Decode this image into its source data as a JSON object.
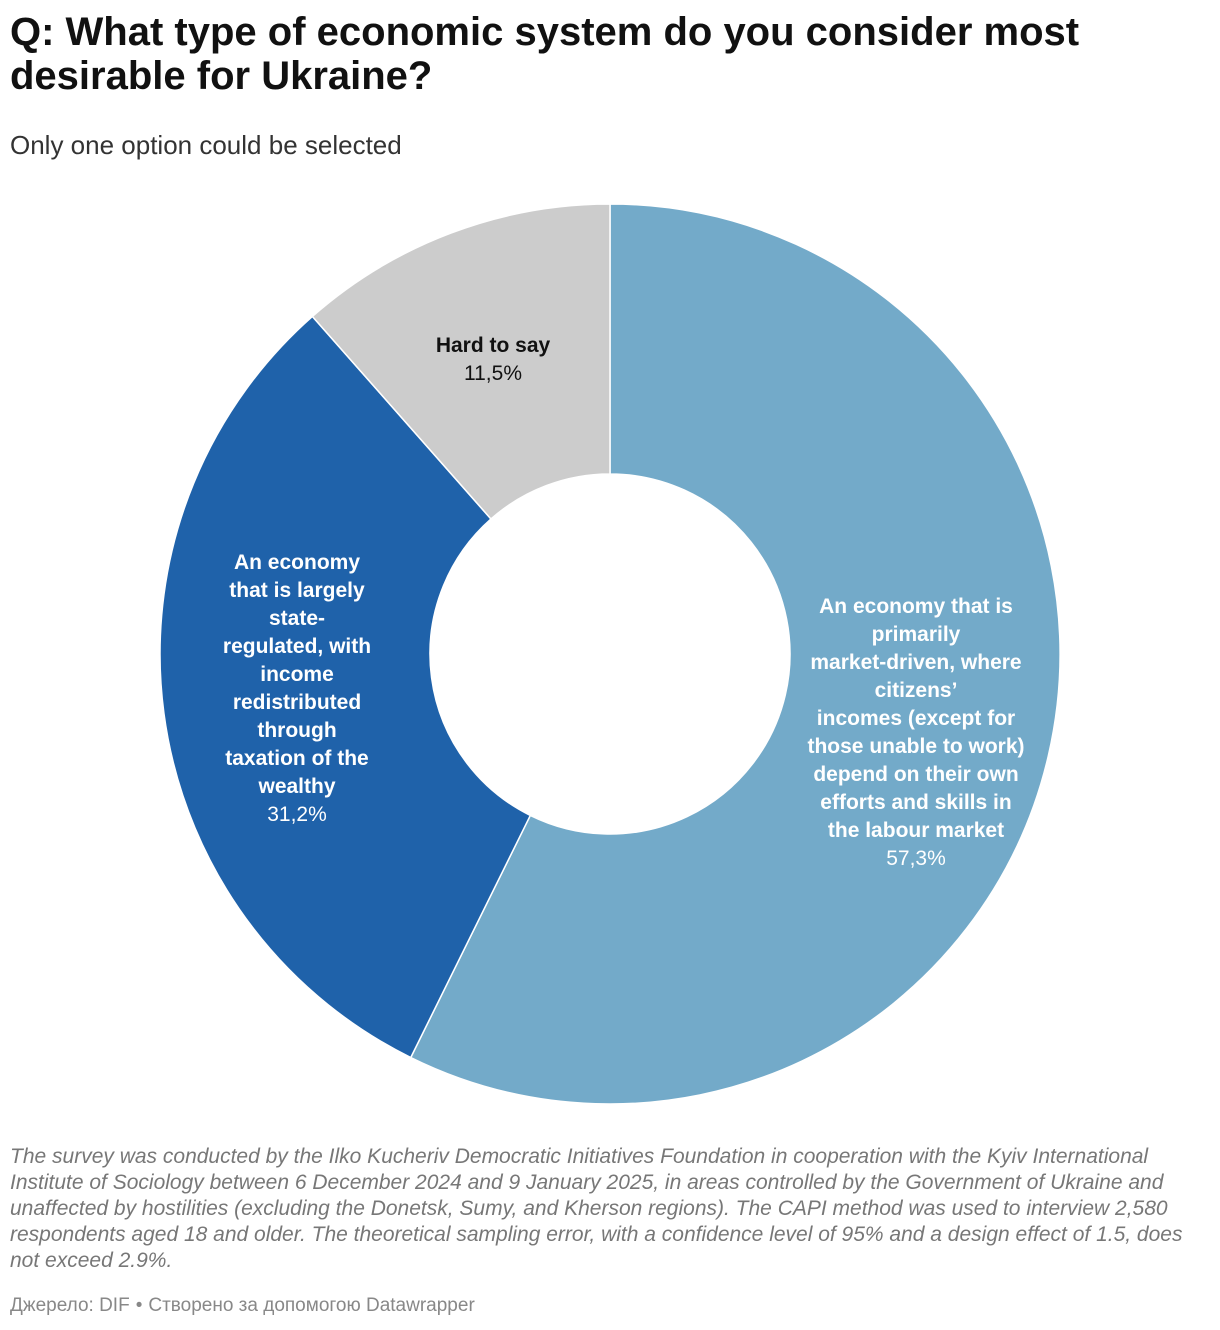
{
  "header": {
    "title": "Q: What type of economic system do you consider most desirable for Ukraine?",
    "subtitle": "Only one option could be selected"
  },
  "chart_data": {
    "type": "pie",
    "variant": "donut",
    "title": "Q: What type of economic system do you consider most desirable for Ukraine?",
    "subtitle": "Only one option could be selected",
    "slices": [
      {
        "name": "market",
        "label_lines": [
          "An economy that is",
          "primarily",
          "market-driven, where",
          "citizens’",
          "incomes (except for",
          "those unable to work)",
          "depend on their own",
          "efforts and skills in",
          "the labour market"
        ],
        "value": 57.3,
        "value_label": "57,3%",
        "color": "#73aac9",
        "text_color": "#ffffff"
      },
      {
        "name": "state",
        "label_lines": [
          "An economy",
          "that is largely",
          "state-",
          "regulated, with",
          "income",
          "redistributed",
          "through",
          "taxation of the",
          "wealthy"
        ],
        "value": 31.2,
        "value_label": "31,2%",
        "color": "#1f62aa",
        "text_color": "#ffffff"
      },
      {
        "name": "hard-to-say",
        "label_lines": [
          "Hard to say"
        ],
        "value": 11.5,
        "value_label": "11,5%",
        "color": "#cccccc",
        "text_color": "#111111"
      }
    ]
  },
  "footer": {
    "notes": "The survey was conducted by the Ilko Kucheriv Democratic Initiatives Foundation in cooperation with the Kyiv International Institute of Sociology between 6 December 2024 and 9 January 2025, in areas controlled by the Government of Ukraine and unaffected by hostilities (excluding the Donetsk, Sumy, and Kherson regions). The CAPI method was used to interview 2,580 respondents aged 18 and older. The theoretical sampling error, with a confidence level of 95% and a design effect of 1.5, does not exceed 2.9%.",
    "source_label": "Джерело: DIF",
    "credit": "Створено за допомогою Datawrapper"
  }
}
